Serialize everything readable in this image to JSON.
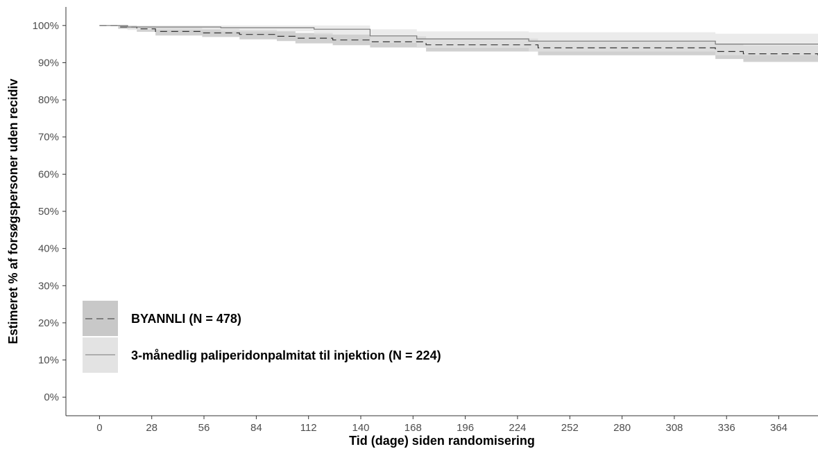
{
  "chart_data": {
    "type": "line",
    "subtype": "kaplan-meier step curves with confidence bands",
    "xlabel": "Tid (dage) siden randomisering",
    "ylabel": "Estimeret % af forsøgspersoner uden recidiv",
    "xlim": [
      -18,
      385
    ],
    "ylim": [
      -5,
      105
    ],
    "x_ticks": [
      0,
      28,
      56,
      84,
      112,
      140,
      168,
      196,
      224,
      252,
      280,
      308,
      336,
      364
    ],
    "x_tick_labels": [
      "0",
      "28",
      "56",
      "84",
      "112",
      "140",
      "168",
      "196",
      "224",
      "252",
      "280",
      "308",
      "336",
      "364"
    ],
    "y_ticks": [
      0,
      10,
      20,
      30,
      40,
      50,
      60,
      70,
      80,
      90,
      100
    ],
    "y_tick_labels": [
      "0%",
      "10%",
      "20%",
      "30%",
      "40%",
      "50%",
      "60%",
      "70%",
      "80%",
      "90%",
      "100%"
    ],
    "grid": false,
    "legend_position": "bottom-left",
    "series": [
      {
        "name": "BYANNLI (N = 478)",
        "line_style": "dashed",
        "line_color": "#333333",
        "band_color": "#c8c8c8",
        "x": [
          0,
          10,
          20,
          30,
          55,
          75,
          95,
          105,
          125,
          145,
          175,
          235,
          330,
          345,
          385
        ],
        "y": [
          100,
          99.6,
          99.1,
          98.4,
          98.0,
          97.6,
          97.1,
          96.6,
          96.1,
          95.6,
          94.8,
          94.0,
          93.0,
          92.4,
          92.0
        ],
        "lower": [
          100,
          99.1,
          98.3,
          97.3,
          96.9,
          96.3,
          95.8,
          95.2,
          94.7,
          94.1,
          93.0,
          92.0,
          91.0,
          90.2,
          89.5
        ],
        "upper": [
          100,
          100,
          99.8,
          99.4,
          99.1,
          98.8,
          98.5,
          98.0,
          97.6,
          97.1,
          96.5,
          95.8,
          95.0,
          94.6,
          94.5
        ]
      },
      {
        "name": "3-månedlig paliperidonpalmitat til injektion (N = 224)",
        "line_style": "solid",
        "line_color": "#777777",
        "band_color": "#e3e3e3",
        "x": [
          0,
          15,
          65,
          115,
          145,
          170,
          230,
          330,
          385
        ],
        "y": [
          100,
          99.6,
          99.4,
          99.0,
          97.2,
          96.4,
          95.8,
          95.0,
          95.0
        ],
        "lower": [
          100,
          98.8,
          98.4,
          97.6,
          95.3,
          94.0,
          93.0,
          92.0,
          92.0
        ],
        "upper": [
          100,
          100,
          100,
          100,
          99.0,
          98.4,
          98.2,
          97.8,
          97.8
        ]
      }
    ]
  },
  "legend": {
    "items": [
      {
        "label": "BYANNLI (N = 478)"
      },
      {
        "label": "3-månedlig paliperidonpalmitat til injektion (N = 224)"
      }
    ]
  }
}
